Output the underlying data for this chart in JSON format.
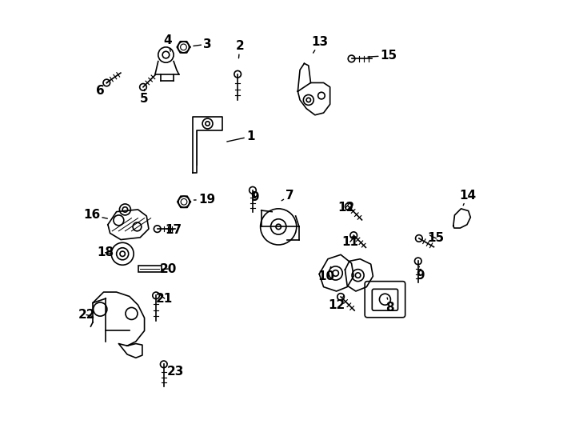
{
  "bg_color": "#ffffff",
  "line_color": "#000000",
  "label_color": "#000000",
  "fig_width": 7.34,
  "fig_height": 5.4,
  "dpi": 100,
  "annotations": [
    [
      1,
      0.4,
      0.685,
      0.34,
      0.672
    ],
    [
      2,
      0.375,
      0.895,
      0.372,
      0.862
    ],
    [
      3,
      0.3,
      0.9,
      0.262,
      0.895
    ],
    [
      4,
      0.207,
      0.908,
      0.215,
      0.878
    ],
    [
      5,
      0.153,
      0.772,
      0.153,
      0.795
    ],
    [
      6,
      0.05,
      0.792,
      0.068,
      0.812
    ],
    [
      7,
      0.492,
      0.548,
      0.468,
      0.533
    ],
    [
      8,
      0.724,
      0.287,
      0.718,
      0.31
    ],
    [
      9,
      0.795,
      0.362,
      0.792,
      0.388
    ],
    [
      9,
      0.41,
      0.543,
      0.407,
      0.562
    ],
    [
      10,
      0.577,
      0.36,
      0.587,
      0.382
    ],
    [
      11,
      0.632,
      0.44,
      0.645,
      0.456
    ],
    [
      12,
      0.622,
      0.52,
      0.632,
      0.532
    ],
    [
      12,
      0.6,
      0.292,
      0.618,
      0.315
    ],
    [
      13,
      0.562,
      0.905,
      0.543,
      0.875
    ],
    [
      14,
      0.905,
      0.548,
      0.893,
      0.52
    ],
    [
      15,
      0.722,
      0.873,
      0.668,
      0.87
    ],
    [
      15,
      0.832,
      0.448,
      0.813,
      0.457
    ],
    [
      16,
      0.03,
      0.502,
      0.072,
      0.493
    ],
    [
      17,
      0.22,
      0.468,
      0.2,
      0.471
    ],
    [
      18,
      0.062,
      0.415,
      0.082,
      0.412
    ],
    [
      19,
      0.298,
      0.538,
      0.263,
      0.537
    ],
    [
      20,
      0.208,
      0.377,
      0.188,
      0.376
    ],
    [
      21,
      0.2,
      0.308,
      0.185,
      0.32
    ],
    [
      22,
      0.018,
      0.27,
      0.038,
      0.265
    ],
    [
      23,
      0.225,
      0.138,
      0.205,
      0.158
    ]
  ]
}
